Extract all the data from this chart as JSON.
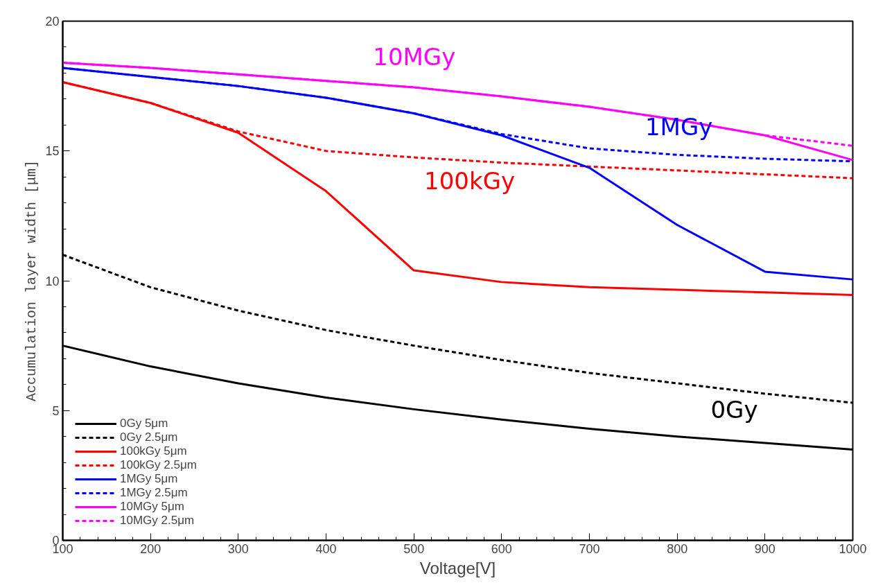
{
  "chart_data": {
    "type": "line",
    "xlabel": "Voltage[V]",
    "ylabel": "Accumulation layer width [μm]",
    "x": [
      100,
      200,
      300,
      400,
      500,
      600,
      700,
      800,
      900,
      1000
    ],
    "xlim": [
      100,
      1000
    ],
    "xticks": [
      100,
      200,
      300,
      400,
      500,
      600,
      700,
      800,
      900,
      1000
    ],
    "ylim": [
      0,
      20
    ],
    "yticks": [
      0,
      5,
      10,
      15,
      20
    ],
    "grid": false,
    "legend": "bottom left",
    "marker": "none",
    "series": [
      {
        "name": "0Gy 5μm",
        "color": "#000000",
        "line_style": "solid",
        "values": [
          7.5,
          6.7,
          6.05,
          5.5,
          5.05,
          4.65,
          4.3,
          4.0,
          3.75,
          3.5
        ]
      },
      {
        "name": "0Gy 2.5μm",
        "color": "#000000",
        "line_style": "dashed",
        "values": [
          11.0,
          9.75,
          8.85,
          8.1,
          7.5,
          6.95,
          6.45,
          6.05,
          5.65,
          5.3
        ]
      },
      {
        "name": "100kGy 5μm",
        "color": "#ff0000",
        "line_style": "solid",
        "values": [
          17.65,
          16.85,
          15.7,
          13.45,
          10.4,
          9.95,
          9.75,
          9.65,
          9.55,
          9.45
        ]
      },
      {
        "name": "100kGy 2.5μm",
        "color": "#ff0000",
        "line_style": "dashed",
        "values": [
          17.65,
          16.85,
          15.75,
          15.0,
          14.75,
          14.55,
          14.4,
          14.25,
          14.1,
          13.95
        ]
      },
      {
        "name": "1MGy 5μm",
        "color": "#0000ff",
        "line_style": "solid",
        "values": [
          18.2,
          17.85,
          17.5,
          17.05,
          16.45,
          15.6,
          14.35,
          12.15,
          10.35,
          10.05
        ]
      },
      {
        "name": "1MGy 2.5μm",
        "color": "#0000ff",
        "line_style": "dashed",
        "values": [
          18.2,
          17.85,
          17.5,
          17.05,
          16.45,
          15.65,
          15.1,
          14.85,
          14.7,
          14.6
        ]
      },
      {
        "name": "10MGy 5μm",
        "color": "#ff00ff",
        "line_style": "solid",
        "values": [
          18.4,
          18.2,
          17.95,
          17.7,
          17.45,
          17.1,
          16.7,
          16.2,
          15.6,
          14.65
        ]
      },
      {
        "name": "10MGy 2.5μm",
        "color": "#ff00ff",
        "line_style": "dashed",
        "values": [
          18.4,
          18.2,
          17.95,
          17.7,
          17.45,
          17.1,
          16.7,
          16.2,
          15.6,
          15.2
        ]
      }
    ],
    "annotations": [
      "10MGy",
      "1MGy",
      "100kGy",
      "0Gy"
    ]
  }
}
